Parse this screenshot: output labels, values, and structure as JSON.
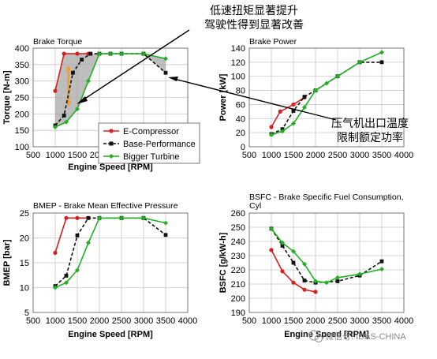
{
  "colors": {
    "e_compressor": "#d42020",
    "base_performance": "#111111",
    "bigger_turbine": "#22b022",
    "grid": "#c8c8c8",
    "shade": "#a8a8a8",
    "orange_arrow": "#f0a030",
    "plot_border": "#777777"
  },
  "annotations": [
    {
      "lines": [
        "低速扭矩显著提升",
        "驾驶性得到显著改善"
      ]
    },
    {
      "lines": [
        "压气机出口温度",
        "限制额定功率"
      ]
    }
  ],
  "watermark": "微信号: IDAS-CHINA",
  "chart_data": [
    {
      "type": "line",
      "title": "Brake Torque",
      "xlabel": "Engine Speed [RPM]",
      "ylabel": "Torque [N-m]",
      "xlim": [
        500,
        4000
      ],
      "ylim": [
        100,
        400
      ],
      "xticks": [
        500,
        1000,
        1500,
        2000,
        2500,
        3000,
        3500,
        4000
      ],
      "yticks": [
        100,
        150,
        200,
        250,
        300,
        350,
        400
      ],
      "grid": true,
      "legend_position": "bottom-left",
      "series": [
        {
          "name": "E-Compressor",
          "key": "e_compressor",
          "dash": false,
          "marker": "circle",
          "x": [
            1000,
            1200,
            1500,
            1750
          ],
          "y": [
            270,
            383,
            383,
            383
          ]
        },
        {
          "name": "Base-Performance",
          "key": "base_performance",
          "dash": true,
          "marker": "square",
          "x": [
            1000,
            1200,
            1400,
            1600,
            1800,
            2000,
            2250,
            2500,
            3000,
            3500
          ],
          "y": [
            165,
            195,
            325,
            365,
            383,
            383,
            383,
            383,
            383,
            325
          ]
        },
        {
          "name": "Bigger Turbine",
          "key": "bigger_turbine",
          "dash": false,
          "marker": "diamond",
          "x": [
            1000,
            1250,
            1500,
            1750,
            2000,
            2250,
            2500,
            3000,
            3500
          ],
          "y": [
            160,
            175,
            215,
            300,
            383,
            383,
            383,
            383,
            368
          ]
        }
      ]
    },
    {
      "type": "line",
      "title": "Brake Power",
      "xlabel": "",
      "ylabel": "Power [kW]",
      "xlim": [
        500,
        4000
      ],
      "ylim": [
        0,
        140
      ],
      "xticks": [
        500,
        1000,
        1500,
        2000,
        2500,
        3000,
        3500,
        4000
      ],
      "yticks": [
        0,
        20,
        40,
        60,
        80,
        100,
        120,
        140
      ],
      "grid": true,
      "series": [
        {
          "name": "E-Compressor",
          "key": "e_compressor",
          "dash": false,
          "marker": "circle",
          "x": [
            1000,
            1200,
            1500,
            1750
          ],
          "y": [
            28,
            50,
            60,
            70
          ]
        },
        {
          "name": "Base-Performance",
          "key": "base_performance",
          "dash": true,
          "marker": "square",
          "x": [
            1000,
            1250,
            1500,
            1750,
            2000,
            2500,
            3000,
            3500
          ],
          "y": [
            18,
            25,
            51,
            71,
            80,
            100,
            120,
            120
          ]
        },
        {
          "name": "Bigger Turbine",
          "key": "bigger_turbine",
          "dash": false,
          "marker": "diamond",
          "x": [
            1000,
            1250,
            1500,
            1750,
            2000,
            2250,
            2500,
            3000,
            3500
          ],
          "y": [
            17,
            22,
            33,
            56,
            80,
            90,
            100,
            120,
            134
          ]
        }
      ]
    },
    {
      "type": "line",
      "title": "BMEP - Brake Mean Effective Pressure",
      "xlabel": "Engine Speed [RPM]",
      "ylabel": "BMEP [bar]",
      "xlim": [
        500,
        4000
      ],
      "ylim": [
        5,
        25
      ],
      "xticks": [
        500,
        1000,
        1500,
        2000,
        2500,
        3000,
        3500,
        4000
      ],
      "yticks": [
        5,
        10,
        15,
        20,
        25
      ],
      "grid": true,
      "series": [
        {
          "name": "E-Compressor",
          "key": "e_compressor",
          "dash": false,
          "marker": "circle",
          "x": [
            1000,
            1250,
            1500,
            1750
          ],
          "y": [
            17,
            24,
            24,
            24
          ]
        },
        {
          "name": "Base-Performance",
          "key": "base_performance",
          "dash": true,
          "marker": "square",
          "x": [
            1000,
            1250,
            1500,
            1750,
            2000,
            2500,
            3000,
            3500
          ],
          "y": [
            10.3,
            12.4,
            20.5,
            24,
            24,
            24,
            24,
            20.6
          ]
        },
        {
          "name": "Bigger Turbine",
          "key": "bigger_turbine",
          "dash": false,
          "marker": "diamond",
          "x": [
            1000,
            1250,
            1500,
            1750,
            2000,
            2500,
            3000,
            3500
          ],
          "y": [
            10,
            11,
            13.5,
            19,
            24,
            24,
            24,
            23
          ]
        }
      ]
    },
    {
      "type": "line",
      "title": "BSFC - Brake Specific Fuel Consumption, Cyl",
      "xlabel": "Engine Speed [RPM]",
      "ylabel": "BSFC [g/kW-h]",
      "xlim": [
        500,
        4000
      ],
      "ylim": [
        190,
        260
      ],
      "xticks": [
        500,
        1000,
        1500,
        2000,
        2500,
        3000,
        3500,
        4000
      ],
      "yticks": [
        190,
        200,
        210,
        220,
        230,
        240,
        250,
        260
      ],
      "grid": true,
      "series": [
        {
          "name": "E-Compressor",
          "key": "e_compressor",
          "dash": false,
          "marker": "circle",
          "x": [
            1000,
            1250,
            1500,
            1750,
            2000
          ],
          "y": [
            234,
            219,
            211,
            206,
            204.5
          ]
        },
        {
          "name": "Base-Performance",
          "key": "base_performance",
          "dash": true,
          "marker": "square",
          "x": [
            1000,
            1250,
            1500,
            1750,
            2000,
            2500,
            3000,
            3500
          ],
          "y": [
            249,
            237,
            225,
            212.5,
            211,
            212,
            216,
            226
          ]
        },
        {
          "name": "Bigger Turbine",
          "key": "bigger_turbine",
          "dash": false,
          "marker": "diamond",
          "x": [
            1000,
            1250,
            1500,
            1750,
            2000,
            2250,
            2500,
            3000,
            3500
          ],
          "y": [
            249,
            239,
            233,
            224,
            212,
            211,
            214.5,
            217,
            220.5
          ]
        }
      ]
    }
  ]
}
